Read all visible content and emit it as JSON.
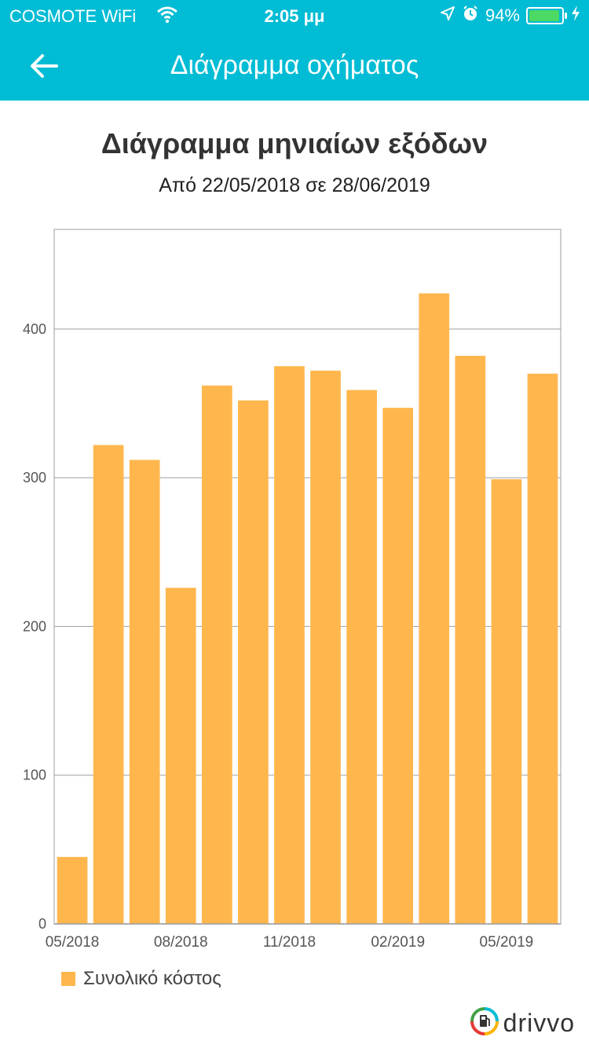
{
  "status_bar": {
    "carrier": "COSMOTE WiFi",
    "time": "2:05 μμ",
    "battery": "94%",
    "battery_level": 0.94
  },
  "app_bar": {
    "title": "Διάγραμμα οχήματος",
    "back_icon": "arrow-left-icon",
    "color": "#00bcd4"
  },
  "chart_data": {
    "type": "bar",
    "title": "Διάγραμμα μηνιαίων εξόδων",
    "subtitle": "Από 22/05/2018 σε 28/06/2019",
    "categories": [
      "05/2018",
      "06/2018",
      "07/2018",
      "08/2018",
      "09/2018",
      "10/2018",
      "11/2018",
      "12/2018",
      "01/2019",
      "02/2019",
      "03/2019",
      "04/2019",
      "05/2019",
      "06/2019"
    ],
    "series": [
      {
        "name": "Συνολικό κόστος",
        "color": "#ffb74d",
        "values": [
          45,
          322,
          312,
          226,
          362,
          352,
          375,
          372,
          359,
          347,
          424,
          382,
          299,
          370
        ]
      }
    ],
    "x_tick_labels": [
      "05/2018",
      "08/2018",
      "11/2018",
      "02/2019",
      "05/2019"
    ],
    "y_ticks": [
      0,
      100,
      200,
      300,
      400
    ],
    "ylim": [
      0,
      467
    ],
    "grid": true,
    "legend_position": "bottom-left"
  },
  "brand": {
    "name": "drivvo"
  }
}
